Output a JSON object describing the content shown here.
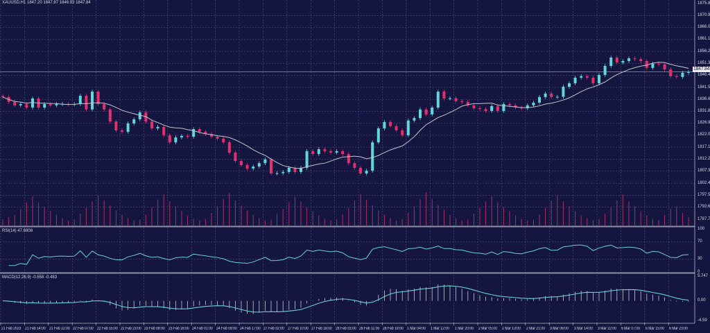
{
  "header": {
    "symbol_info": "XAUUSD,H1  1847.20 1847.87 1846.93 1847.84"
  },
  "colors": {
    "background": "#14163f",
    "grid": "#4b5088",
    "bull": "#62d6dc",
    "bear": "#e2306f",
    "volume": "#a8306a",
    "ma": "#c4c4cc",
    "rsi": "#6ad0d8",
    "macd_hist": "#c8c8d0",
    "macd_signal": "#6ad0d8"
  },
  "chart_data": [
    {
      "type": "candlestick",
      "symbol": "XAUUSD",
      "timeframe": "H1",
      "ylim": [
        1787.7,
        1875.8
      ],
      "grid": true,
      "y_ticks": [
        "1875.80",
        "1870.90",
        "1866.00",
        "1861.10",
        "1856.20",
        "1851.30",
        "1846.40",
        "1841.50",
        "1836.60",
        "1831.80",
        "1826.90",
        "1822.00",
        "1817.10",
        "1812.20",
        "1807.30",
        "1802.40",
        "1797.50",
        "1792.60",
        "1787.70"
      ],
      "last_price": "1847.84",
      "x_ticks": [
        "21 Feb 2023",
        "21 Feb 14:00",
        "21 Feb 22:00",
        "22 Feb 07:00",
        "22 Feb 15:00",
        "22 Feb 23:00",
        "23 Feb 08:00",
        "23 Feb 16:00",
        "24 Feb 01:00",
        "24 Feb 09:00",
        "24 Feb 17:00",
        "27 Feb 02:00",
        "27 Feb 10:00",
        "27 Feb 18:00",
        "28 Feb 03:00",
        "28 Feb 11:00",
        "28 Feb 19:00",
        "1 Mar 04:00",
        "1 Mar 12:00",
        "1 Mar 20:00",
        "2 Mar 05:00",
        "2 Mar 13:00",
        "2 Mar 21:00",
        "3 Mar 06:00",
        "3 Mar 14:00",
        "3 Mar 22:00",
        "6 Mar 07:00",
        "6 Mar 15:00",
        "6 Mar 23:00"
      ],
      "close": [
        1837.6,
        1835.6,
        1834.2,
        1834.7,
        1833.3,
        1837.0,
        1833.3,
        1834.7,
        1834.2,
        1834.7,
        1834.8,
        1834.6,
        1834.7,
        1838.1,
        1832.5,
        1839.8,
        1834.7,
        1832.5,
        1827.6,
        1824.0,
        1823.4,
        1826.8,
        1828.5,
        1831.3,
        1827.6,
        1824.8,
        1825.4,
        1822.0,
        1819.1,
        1821.1,
        1821.7,
        1821.4,
        1824.5,
        1823.4,
        1822.5,
        1821.4,
        1820.6,
        1819.1,
        1814.9,
        1811.5,
        1809.8,
        1808.4,
        1809.2,
        1810.6,
        1812.1,
        1806.4,
        1806.5,
        1807.0,
        1808.7,
        1807.0,
        1808.7,
        1815.5,
        1814.3,
        1816.3,
        1815.5,
        1814.9,
        1815.5,
        1814.3,
        1810.6,
        1808.7,
        1806.4,
        1807.5,
        1819.1,
        1824.8,
        1827.4,
        1825.7,
        1824.0,
        1822.0,
        1828.0,
        1829.0,
        1832.5,
        1830.5,
        1833.3,
        1839.8,
        1837.0,
        1837.1,
        1835.9,
        1835.6,
        1834.2,
        1833.0,
        1832.7,
        1831.9,
        1833.9,
        1831.9,
        1834.7,
        1834.2,
        1833.3,
        1833.0,
        1834.2,
        1835.3,
        1837.6,
        1839.0,
        1837.6,
        1837.7,
        1841.8,
        1843.2,
        1845.5,
        1846.1,
        1845.5,
        1843.2,
        1846.6,
        1850.3,
        1853.7,
        1851.7,
        1852.3,
        1853.4,
        1853.1,
        1852.3,
        1849.5,
        1851.2,
        1850.9,
        1848.9,
        1846.1,
        1845.8,
        1847.5,
        1847.8
      ],
      "volume": [
        15,
        20,
        25,
        40,
        55,
        70,
        55,
        45,
        35,
        25,
        18,
        12,
        14,
        28,
        42,
        58,
        72,
        60,
        48,
        36,
        26,
        18,
        12,
        14,
        26,
        44,
        62,
        75,
        58,
        46,
        34,
        24,
        16,
        12,
        15,
        30,
        46,
        64,
        78,
        60,
        48,
        36,
        26,
        18,
        12,
        14,
        28,
        40,
        56,
        70,
        58,
        44,
        34,
        24,
        16,
        12,
        14,
        26,
        42,
        60,
        76,
        62,
        48,
        36,
        26,
        18,
        12,
        15,
        30,
        46,
        64,
        80,
        64,
        50,
        38,
        26,
        18,
        12,
        14,
        28,
        42,
        58,
        70,
        56,
        44,
        34,
        24,
        16,
        12,
        14,
        26,
        42,
        60,
        72,
        58,
        46,
        34,
        24,
        18,
        12,
        15,
        28,
        44,
        60,
        74,
        58,
        46,
        34,
        24,
        16,
        12,
        25,
        40,
        45,
        30,
        20
      ]
    },
    {
      "type": "line",
      "indicator": "RSI",
      "label": "RSI(14) 47.6908",
      "y_ticks": [
        "100",
        "70",
        "30",
        "0"
      ],
      "ylim": [
        0,
        100
      ]
    },
    {
      "type": "bar",
      "indicator": "MACD",
      "label": "MACD(12,26,9) -0.558 -0.483",
      "y_ticks": [
        "5.747",
        "0.00",
        "-4.59"
      ],
      "ylim": [
        -4.59,
        5.747
      ]
    }
  ]
}
